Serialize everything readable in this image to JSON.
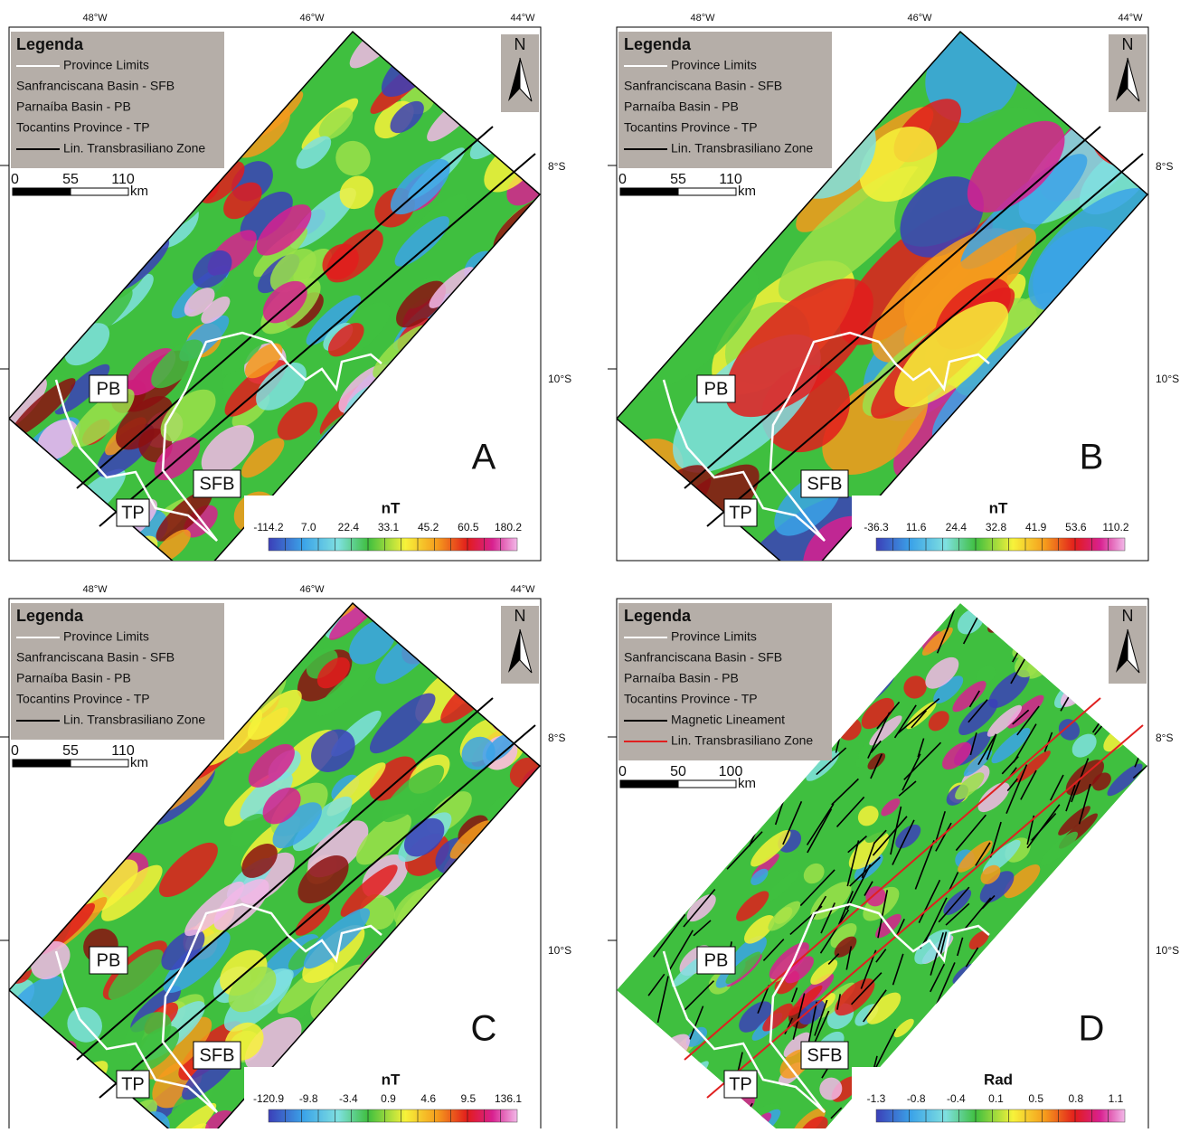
{
  "panels": [
    {
      "letter": "A",
      "north": "N",
      "lon": [
        "48°W",
        "46°W",
        "44°W"
      ],
      "lat": [
        "8°S",
        "10°S"
      ],
      "regions": [
        "PB",
        "SFB",
        "TP"
      ],
      "legend": {
        "title": "Legenda",
        "items": [
          {
            "label": "Province Limits",
            "line": "#ffffff"
          },
          {
            "label": "Sanfranciscana Basin - SFB"
          },
          {
            "label": "Parnaíba Basin - PB"
          },
          {
            "label": "Tocantins Province - TP"
          },
          {
            "label": "Lin. Transbrasiliano Zone",
            "line": "#000000"
          }
        ]
      },
      "scale": {
        "labels": [
          "0",
          "55",
          "110"
        ],
        "unit": "km"
      },
      "colorbar": {
        "unit": "nT",
        "labels": [
          "-114.2",
          "7.0",
          "22.4",
          "33.1",
          "45.2",
          "60.5",
          "180.2"
        ]
      }
    },
    {
      "letter": "B",
      "north": "N",
      "lon": [
        "48°W",
        "46°W",
        "44°W"
      ],
      "lat": [
        "8°S",
        "10°S"
      ],
      "regions": [
        "PB",
        "SFB",
        "TP"
      ],
      "legend": {
        "title": "Legenda",
        "items": [
          {
            "label": "Province Limits",
            "line": "#ffffff"
          },
          {
            "label": "Sanfranciscana Basin - SFB"
          },
          {
            "label": "Parnaíba Basin - PB"
          },
          {
            "label": "Tocantins Province - TP"
          },
          {
            "label": "Lin. Transbrasiliano Zone",
            "line": "#000000"
          }
        ]
      },
      "scale": {
        "labels": [
          "0",
          "55",
          "110"
        ],
        "unit": "km"
      },
      "colorbar": {
        "unit": "nT",
        "labels": [
          "-36.3",
          "11.6",
          "24.4",
          "32.8",
          "41.9",
          "53.6",
          "110.2"
        ]
      }
    },
    {
      "letter": "C",
      "north": "N",
      "lon": [
        "48°W",
        "46°W",
        "44°W"
      ],
      "lat": [
        "8°S",
        "10°S"
      ],
      "regions": [
        "PB",
        "SFB",
        "TP"
      ],
      "legend": {
        "title": "Legenda",
        "items": [
          {
            "label": "Province Limits",
            "line": "#ffffff"
          },
          {
            "label": "Sanfranciscana Basin - SFB"
          },
          {
            "label": "Parnaíba Basin - PB"
          },
          {
            "label": "Tocantins Province - TP"
          },
          {
            "label": "Lin. Transbrasiliano Zone",
            "line": "#000000"
          }
        ]
      },
      "scale": {
        "labels": [
          "0",
          "55",
          "110"
        ],
        "unit": "km"
      },
      "colorbar": {
        "unit": "nT",
        "labels": [
          "-120.9",
          "-9.8",
          "-3.4",
          "0.9",
          "4.6",
          "9.5",
          "136.1"
        ]
      }
    },
    {
      "letter": "D",
      "north": "N",
      "lon": [],
      "lat": [
        "8°S",
        "10°S"
      ],
      "regions": [
        "PB",
        "SFB",
        "TP"
      ],
      "legend": {
        "title": "Legenda",
        "items": [
          {
            "label": "Province Limits",
            "line": "#ffffff"
          },
          {
            "label": "Sanfranciscana Basin - SFB"
          },
          {
            "label": "Parnaíba Basin - PB"
          },
          {
            "label": "Tocantins Province - TP"
          },
          {
            "label": "Magnetic Lineament",
            "line": "#000000"
          },
          {
            "label": "Lin. Transbrasiliano Zone",
            "line": "#e02020"
          }
        ]
      },
      "scale": {
        "labels": [
          "0",
          "50",
          "100"
        ],
        "unit": "km"
      },
      "colorbar": {
        "unit": "Rad",
        "labels": [
          "-1.3",
          "-0.8",
          "-0.4",
          "0.1",
          "0.5",
          "0.8",
          "1.1"
        ]
      }
    }
  ]
}
